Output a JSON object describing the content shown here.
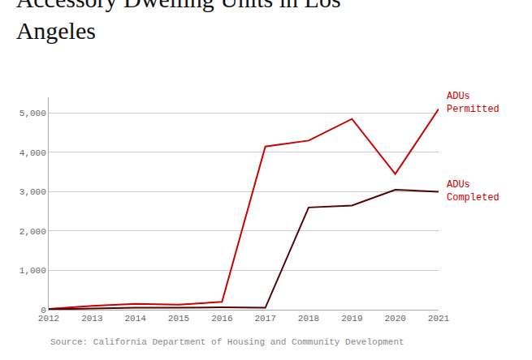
{
  "chart_data": {
    "type": "line",
    "title": "Accessory Dwelling Units in Los\nAngeles",
    "source": "Source: California Department of Housing and Community Development",
    "x": [
      2012,
      2013,
      2014,
      2015,
      2016,
      2017,
      2018,
      2019,
      2020,
      2021
    ],
    "series": [
      {
        "color": "#cc0000",
        "values": [
          20,
          100,
          150,
          130,
          200,
          4150,
          4300,
          4850,
          3450,
          5100
        ]
      },
      {
        "color": "#550000",
        "values": [
          10,
          30,
          50,
          50,
          60,
          50,
          2600,
          2650,
          3050,
          3000
        ]
      }
    ],
    "annotations": [
      {
        "text": "ADUs\nPermitted",
        "color": "#cc0000",
        "x": 2021,
        "y": 5100
      },
      {
        "text": "ADUs\nCompleted",
        "color": "#cc0000",
        "x": 2021,
        "y": 3000
      }
    ],
    "xlim": [
      2012,
      2021
    ],
    "xticks": [
      2012,
      2013,
      2014,
      2015,
      2016,
      2017,
      2018,
      2019,
      2020,
      2021
    ],
    "ylim": [
      0,
      5400
    ],
    "yticks": [
      0,
      {
        "value": 1000,
        "label": "1,000"
      },
      {
        "value": 2000,
        "label": "2,000"
      },
      {
        "value": 3000,
        "label": "3,000"
      },
      {
        "value": 4000,
        "label": "4,000"
      },
      {
        "value": 5000,
        "label": "5,000"
      }
    ],
    "grid": "y"
  }
}
